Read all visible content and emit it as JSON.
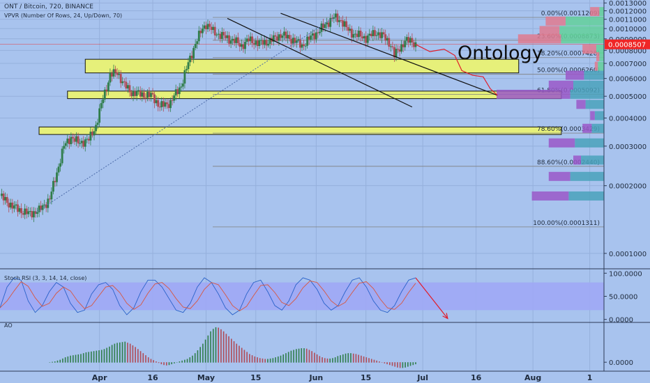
{
  "header": {
    "symbol_line": "ONT / Bitcoin, 720, BINANCE",
    "indicator_line": "VPVR (Number Of Rows, 24, Up/Down, 70)",
    "watermark": "Ontology"
  },
  "colors": {
    "background": "#a8c3ee",
    "candle_up": "#2f7d4a",
    "candle_down": "#b04a55",
    "zone_fill": "#e6f07a",
    "fib_line": "#7f7f7f",
    "price_badge": "#ef2626",
    "stoch_band": "#9ea9f5",
    "vpvr_up": "#63d09a",
    "vpvr_down": "#e07a8e",
    "vpvr_purple": "#9a58c8",
    "vpvr_teal": "#4aa2bb"
  },
  "chart_data": {
    "type": "candlestick",
    "x_ticks": [
      {
        "label": "Apr",
        "day": 28
      },
      {
        "label": "16",
        "day": 43
      },
      {
        "label": "May",
        "day": 58
      },
      {
        "label": "15",
        "day": 72
      },
      {
        "label": "Jun",
        "day": 89
      },
      {
        "label": "15",
        "day": 103
      },
      {
        "label": "Jul",
        "day": 119
      },
      {
        "label": "16",
        "day": 134
      },
      {
        "label": "Aug",
        "day": 150
      },
      {
        "label": "1",
        "day": 166
      }
    ],
    "price_axis": {
      "scale": "log",
      "range": [
        8.6e-05,
        0.00134
      ],
      "ticks": [
        "0.0013000",
        "0.0012000",
        "0.0011000",
        "0.0010000",
        "0.0009000",
        "0.0008000",
        "0.0007000",
        "0.0006000",
        "0.0005000",
        "0.0004000",
        "0.0003000",
        "0.0002000",
        "0.0001000"
      ],
      "tick_values": [
        0.0013,
        0.0012,
        0.0011,
        0.001,
        0.0009,
        0.0008,
        0.0007,
        0.0006,
        0.0005,
        0.0004,
        0.0003,
        0.0002,
        0.0001
      ]
    },
    "last_price": {
      "label": "0.0008507",
      "value": 0.0008507
    },
    "price_path": [
      [
        0,
        0.00018
      ],
      [
        4,
        0.00016
      ],
      [
        8,
        0.00015
      ],
      [
        11,
        0.000155
      ],
      [
        14,
        0.000175
      ],
      [
        18,
        0.0003
      ],
      [
        20,
        0.00033
      ],
      [
        22,
        0.00031
      ],
      [
        25,
        0.00032
      ],
      [
        27,
        0.00037
      ],
      [
        29,
        0.00049
      ],
      [
        31,
        0.00062
      ],
      [
        33,
        0.00064
      ],
      [
        35,
        0.00056
      ],
      [
        37,
        0.00052
      ],
      [
        40,
        0.00051
      ],
      [
        43,
        0.0005
      ],
      [
        45,
        0.00045
      ],
      [
        48,
        0.00047
      ],
      [
        51,
        0.00056
      ],
      [
        53,
        0.0007
      ],
      [
        55,
        0.00086
      ],
      [
        57,
        0.001
      ],
      [
        58,
        0.00105
      ],
      [
        60,
        0.00097
      ],
      [
        63,
        0.00092
      ],
      [
        66,
        0.00088
      ],
      [
        68,
        0.00084
      ],
      [
        70,
        0.00089
      ],
      [
        73,
        0.00086
      ],
      [
        76,
        0.00088
      ],
      [
        79,
        0.00094
      ],
      [
        82,
        0.0009
      ],
      [
        85,
        0.00084
      ],
      [
        88,
        0.00093
      ],
      [
        90,
        0.00098
      ],
      [
        92,
        0.00106
      ],
      [
        94,
        0.00112
      ],
      [
        96,
        0.00109
      ],
      [
        98,
        0.00098
      ],
      [
        100,
        0.00094
      ],
      [
        103,
        0.00091
      ],
      [
        106,
        0.00096
      ],
      [
        108,
        0.00092
      ],
      [
        110,
        0.00085
      ],
      [
        111,
        0.00076
      ],
      [
        112,
        0.0008
      ],
      [
        114,
        0.00088
      ],
      [
        116,
        0.00088
      ],
      [
        117,
        0.00085
      ]
    ],
    "projection_path": [
      [
        117,
        0.00085
      ],
      [
        121,
        0.00079
      ],
      [
        125,
        0.00081
      ],
      [
        128,
        0.00076
      ],
      [
        130,
        0.00065
      ],
      [
        133,
        0.00062
      ],
      [
        136,
        0.00061
      ],
      [
        138,
        0.00054
      ],
      [
        140,
        0.000505
      ]
    ],
    "fibonacci": [
      {
        "label": "0.00%(0.0011209)",
        "value": 0.0011209
      },
      {
        "label": "23.60%(0.0008873)",
        "value": 0.0008873
      },
      {
        "label": "38.20%(0.0007428)",
        "value": 0.0007428
      },
      {
        "label": "50.00%(0.0006260)",
        "value": 0.000626
      },
      {
        "label": "61.80%(0.0005092)",
        "value": 0.0005092
      },
      {
        "label": "78.60%(0.0003429)",
        "value": 0.0003429
      },
      {
        "label": "88.60%(0.0002440)",
        "value": 0.000244
      },
      {
        "label": "100.00%(0.0001311)",
        "value": 0.0001311
      }
    ],
    "zones": [
      {
        "from_day": 24,
        "to_day": 146,
        "top": 0.00073,
        "bottom": 0.000635
      },
      {
        "from_day": 19,
        "to_day": 158,
        "top": 0.000527,
        "bottom": 0.000488
      },
      {
        "from_day": 11,
        "to_day": 158,
        "top": 0.000365,
        "bottom": 0.000338
      }
    ],
    "channel_lines": [
      {
        "start": [
          64,
          0.00111
        ],
        "end": [
          116,
          0.000448
        ]
      },
      {
        "start": [
          79,
          0.00117
        ],
        "end": [
          140,
          0.000505
        ]
      }
    ],
    "vpvr_rows": [
      {
        "value": 0.00119,
        "up": 0.3,
        "down": 0.6
      },
      {
        "value": 0.00108,
        "up": 2.5,
        "down": 1.3
      },
      {
        "value": 0.00098,
        "up": 2.9,
        "down": 1.3
      },
      {
        "value": 0.0009,
        "up": 2.8,
        "down": 2.8
      },
      {
        "value": 0.00081,
        "up": 0.5,
        "down": 0.9
      },
      {
        "value": 0.00075,
        "up": 0.3,
        "down": 0.2
      },
      {
        "value": 0.00068,
        "up": 0.4,
        "down": 0.2
      },
      {
        "value": 0.00062,
        "up": 1.3,
        "down": 1.2
      },
      {
        "value": 0.00056,
        "up": 2.0,
        "down": 1.6
      },
      {
        "value": 0.00051,
        "up": 2.2,
        "down": 4.8
      },
      {
        "value": 0.00046,
        "up": 1.2,
        "down": 0.6
      },
      {
        "value": 0.00041,
        "up": 0.6,
        "down": 0.3
      },
      {
        "value": 0.00036,
        "up": 0.8,
        "down": 0.6
      },
      {
        "value": 0.00031,
        "up": 1.9,
        "down": 1.7
      },
      {
        "value": 0.00026,
        "up": 1.5,
        "down": 0.5
      },
      {
        "value": 0.00022,
        "up": 2.2,
        "down": 1.4
      },
      {
        "value": 0.00018,
        "up": 2.3,
        "down": 2.4
      }
    ],
    "stoch_rsi": {
      "label": "Stoch RSI (3, 3, 14, 14, close)",
      "ticks": [
        "100.0000",
        "50.0000",
        "0.0000"
      ],
      "tick_values": [
        100,
        50,
        0
      ],
      "band": [
        20,
        80
      ],
      "range": [
        -5,
        108
      ],
      "k_values": [
        25,
        70,
        90,
        85,
        40,
        15,
        30,
        60,
        80,
        70,
        35,
        15,
        20,
        55,
        75,
        80,
        65,
        30,
        10,
        25,
        60,
        85,
        85,
        70,
        45,
        20,
        15,
        35,
        70,
        90,
        80,
        55,
        25,
        10,
        20,
        55,
        80,
        85,
        60,
        30,
        20,
        40,
        75,
        90,
        85,
        65,
        35,
        20,
        30,
        60,
        85,
        90,
        70,
        40,
        20,
        15,
        30,
        60,
        85,
        90
      ],
      "arrow": {
        "start": [
          117,
          90
        ],
        "end": [
          126,
          2
        ]
      }
    },
    "ao": {
      "label": "AO",
      "ticks": [
        "0.0000"
      ],
      "tick_values": [
        0
      ],
      "range": [
        -4e-05,
        0.00019
      ],
      "values": [
        0,
        2e-06,
        4e-06,
        8e-06,
        1.2e-05,
        1.8e-05,
        2.4e-05,
        2.8e-05,
        3.2e-05,
        3.4e-05,
        3.6e-05,
        3.8e-05,
        4e-05,
        4.4e-05,
        4.8e-05,
        5e-05,
        5.2e-05,
        5.4e-05,
        5.6e-05,
        5.8e-05,
        6e-05,
        6.4e-05,
        7e-05,
        7.6e-05,
        8.4e-05,
        9e-05,
        9.4e-05,
        9.6e-05,
        9.8e-05,
        0.0001,
        9.5e-05,
        9e-05,
        8.2e-05,
        7.4e-05,
        6.4e-05,
        5.4e-05,
        4.4e-05,
        3.4e-05,
        2.4e-05,
        1.6e-05,
        1e-05,
        4e-06,
        -2e-06,
        -8e-06,
        -1.2e-05,
        -1.4e-05,
        -1.2e-05,
        -8e-06,
        -4e-06,
        0,
        4e-06,
        8e-06,
        1.2e-05,
        1.6e-05,
        2.4e-05,
        3.2e-05,
        4.4e-05,
        5.8e-05,
        7.4e-05,
        9e-05,
        0.00011,
        0.00013,
        0.00015,
        0.000162,
        0.00017,
        0.000168,
        0.00016,
        0.00015,
        0.000138,
        0.000126,
        0.000114,
        0.000102,
        9e-05,
        8e-05,
        7e-05,
        6e-05,
        5e-05,
        4e-05,
        3.4e-05,
        2.8e-05,
        2.4e-05,
        2e-05,
        1.8e-05,
        1.6e-05,
        1.6e-05,
        1.8e-05,
        2e-05,
        2.4e-05,
        2.8e-05,
        3.2e-05,
        3.8e-05,
        4.4e-05,
        5e-05,
        5.6e-05,
        6e-05,
        6.4e-05,
        6.6e-05,
        6.8e-05,
        6.8e-05,
        6.6e-05,
        6e-05,
        5.4e-05,
        4.6e-05,
        3.8e-05,
        3e-05,
        2.4e-05,
        2e-05,
        1.8e-05,
        1.8e-05,
        2e-05,
        2.4e-05,
        3e-05,
        3.4e-05,
        3.8e-05,
        4.2e-05,
        4.4e-05,
        4.4e-05,
        4.2e-05,
        4e-05,
        3.6e-05,
        3.2e-05,
        2.8e-05,
        2.4e-05,
        2e-05,
        1.6e-05,
        1.2e-05,
        8e-06,
        4e-06,
        0,
        -4e-06,
        -8e-06,
        -1.2e-05,
        -1.6e-05,
        -2e-05,
        -2.4e-05,
        -2.6e-05,
        -2.6e-05,
        -2.4e-05,
        -2e-05,
        -1.6e-05,
        -1.2e-05,
        -8e-06
      ]
    }
  }
}
